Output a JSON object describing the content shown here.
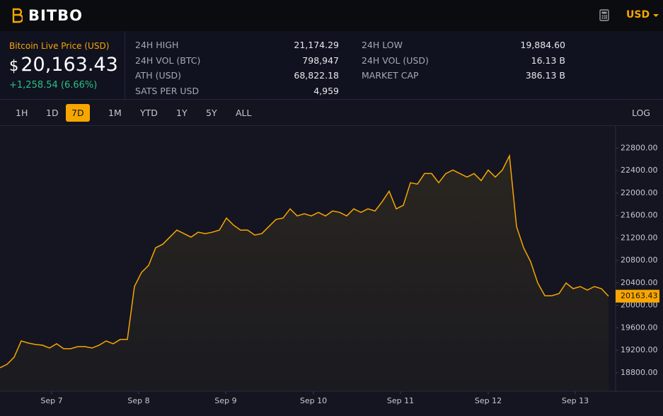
{
  "header": {
    "logo": "BITBO",
    "currency": "USD"
  },
  "price": {
    "label": "Bitcoin Live Price (USD)",
    "symbol": "$",
    "value": "20,163.43",
    "change": "+1,258.54 (6.66%)"
  },
  "stats": [
    [
      [
        "24H HIGH",
        "21,174.29"
      ],
      [
        "24H VOL (BTC)",
        "798,947"
      ],
      [
        "ATH (USD)",
        "68,822.18"
      ],
      [
        "SATS PER USD",
        "4,959"
      ]
    ],
    [
      [
        "24H LOW",
        "19,884.60"
      ],
      [
        "24H VOL (USD)",
        "16.13 B"
      ],
      [
        "MARKET CAP",
        "386.13 B"
      ]
    ]
  ],
  "ranges": [
    "1H",
    "1D",
    "7D",
    "1M",
    "YTD",
    "1Y",
    "5Y",
    "ALL"
  ],
  "active_range": 2,
  "log_label": "LOG",
  "chart_data": {
    "type": "area",
    "color": "#f7a600",
    "values": [
      18888,
      18950,
      19077,
      19366,
      19328,
      19303,
      19290,
      19240,
      19316,
      19227,
      19227,
      19265,
      19265,
      19240,
      19290,
      19366,
      19316,
      19392,
      19392,
      20335,
      20586,
      20712,
      21026,
      21089,
      21215,
      21340,
      21278,
      21215,
      21303,
      21278,
      21303,
      21340,
      21555,
      21429,
      21340,
      21340,
      21252,
      21278,
      21404,
      21530,
      21555,
      21718,
      21592,
      21630,
      21592,
      21655,
      21592,
      21680,
      21655,
      21592,
      21718,
      21655,
      21718,
      21680,
      21844,
      22033,
      21718,
      21781,
      22184,
      22159,
      22347,
      22347,
      22184,
      22347,
      22410,
      22347,
      22284,
      22347,
      22221,
      22410,
      22284,
      22410,
      22662,
      21404,
      21026,
      20775,
      20398,
      20171,
      20171,
      20209,
      20398,
      20297,
      20335,
      20272,
      20335,
      20297,
      20163.43
    ],
    "price_label": "20163.43",
    "xlim": [
      0,
      86.2
    ],
    "xticks": [
      {
        "value": 7.3,
        "label": "Sep 7"
      },
      {
        "value": 19.6,
        "label": "Sep 8"
      },
      {
        "value": 31.9,
        "label": "Sep 9"
      },
      {
        "value": 44.3,
        "label": "Sep 10"
      },
      {
        "value": 56.6,
        "label": "Sep 11"
      },
      {
        "value": 69.0,
        "label": "Sep 12"
      },
      {
        "value": 81.3,
        "label": "Sep 13"
      }
    ],
    "ylim": [
      18470,
      23170
    ],
    "yticks": [
      {
        "value": 18800,
        "label": "18800.00"
      },
      {
        "value": 19200,
        "label": "19200.00"
      },
      {
        "value": 19600,
        "label": "19600.00"
      },
      {
        "value": 20000,
        "label": "20000.00"
      },
      {
        "value": 20400,
        "label": "20400.00"
      },
      {
        "value": 20800,
        "label": "20800.00"
      },
      {
        "value": 21200,
        "label": "21200.00"
      },
      {
        "value": 21600,
        "label": "21600.00"
      },
      {
        "value": 22000,
        "label": "22000.00"
      },
      {
        "value": 22400,
        "label": "22400.00"
      },
      {
        "value": 22800,
        "label": "22800.00"
      }
    ],
    "grid": false
  }
}
